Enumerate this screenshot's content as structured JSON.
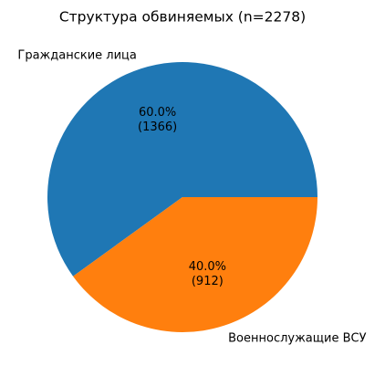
{
  "chart_data": {
    "type": "pie",
    "title": "Структура обвиняемых (n=2278)",
    "categories": [
      "Гражданские лица",
      "Военнослужащие ВСУ"
    ],
    "values": [
      1366,
      912
    ],
    "value_labels": [
      [
        "60.0%",
        "(1366)"
      ],
      [
        "40.0%",
        "(912)"
      ]
    ],
    "colors": [
      "#1f77b4",
      "#ff7f0e"
    ],
    "start_angle": 0
  }
}
